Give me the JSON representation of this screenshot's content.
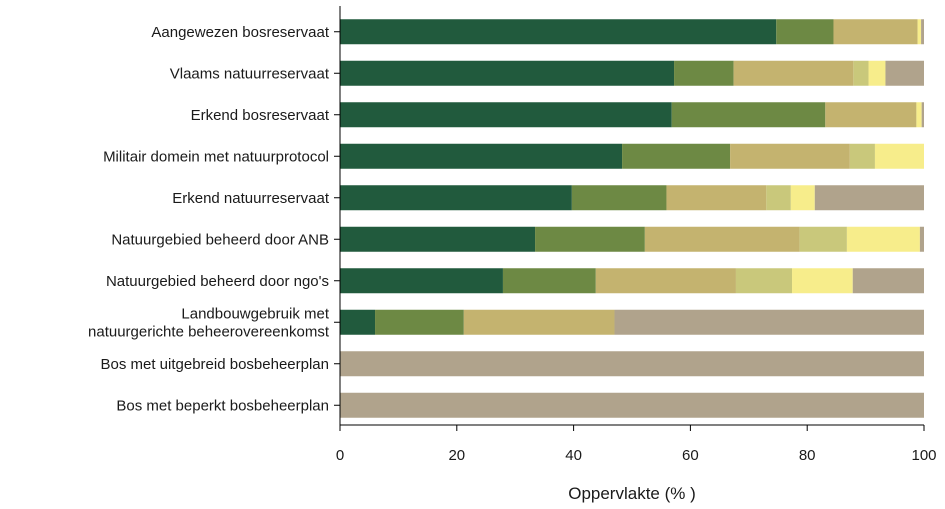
{
  "chart_data": {
    "type": "bar",
    "orientation": "horizontal",
    "stacked": true,
    "title": "",
    "xlabel": "Oppervlakte (% )",
    "ylabel": "",
    "xlim": [
      0,
      100
    ],
    "xticks": [
      "0",
      "20",
      "40",
      "60",
      "80",
      "100"
    ],
    "grid": false,
    "legend": "none",
    "categories": [
      [
        "Aangewezen bosreservaat"
      ],
      [
        "Vlaams natuurreservaat"
      ],
      [
        "Erkend bosreservaat"
      ],
      [
        "Militair domein met natuurprotocol"
      ],
      [
        "Erkend natuurreservaat"
      ],
      [
        "Natuurgebied beheerd door ANB"
      ],
      [
        "Natuurgebied beheerd door ngo's"
      ],
      [
        "Landbouwgebruik met",
        "natuurgerichte beheerovereenkomst"
      ],
      [
        "Bos met uitgebreid bosbeheerplan"
      ],
      [
        "Bos met beperkt bosbeheerplan"
      ]
    ],
    "series": [
      {
        "color": "#215a3d",
        "values": [
          74.7,
          57.2,
          56.8,
          48.3,
          39.7,
          33.4,
          27.9,
          6.0,
          0,
          0
        ]
      },
      {
        "color": "#6d8944",
        "values": [
          9.8,
          10.2,
          26.3,
          18.5,
          16.2,
          18.8,
          15.9,
          15.2,
          0,
          0
        ]
      },
      {
        "color": "#c4b36f",
        "values": [
          14.4,
          20.5,
          15.6,
          20.5,
          17.1,
          26.5,
          24.0,
          25.8,
          0,
          0
        ]
      },
      {
        "color": "#c9c87b",
        "values": [
          0,
          2.6,
          0,
          4.3,
          4.2,
          8.1,
          9.6,
          0,
          0,
          0
        ]
      },
      {
        "color": "#f7ed8b",
        "values": [
          0.6,
          2.9,
          0.9,
          8.4,
          4.1,
          12.5,
          10.4,
          0,
          0,
          0
        ]
      },
      {
        "color": "#b0a38c",
        "values": [
          0.5,
          6.6,
          0.4,
          0,
          18.7,
          0.7,
          12.2,
          53.0,
          100,
          100
        ]
      }
    ]
  }
}
